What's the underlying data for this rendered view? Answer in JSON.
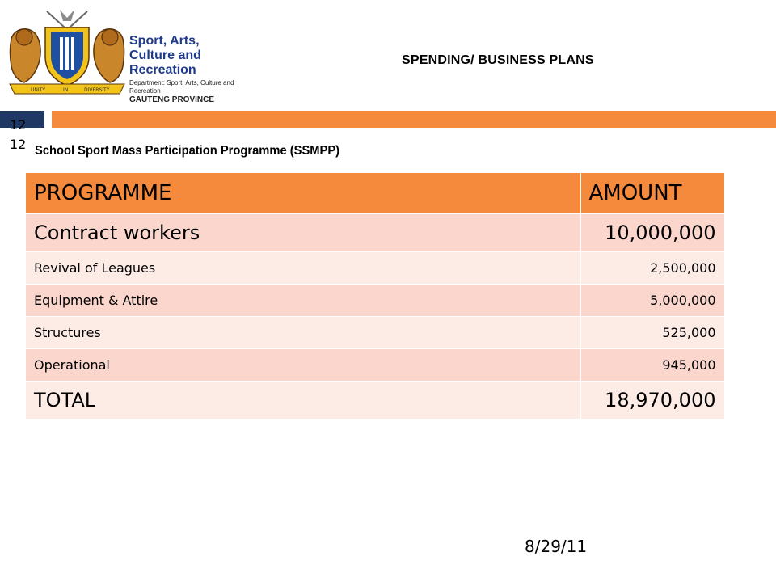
{
  "logo": {
    "line1": "Sport, Arts,",
    "line2": "Culture and Recreation",
    "line3": "Department: Sport, Arts, Culture and Recreation",
    "line4": "GAUTENG PROVINCE",
    "ribbon": [
      "UNITY",
      "IN",
      "DIVERSITY"
    ]
  },
  "header": {
    "title": "SPENDING/ BUSINESS PLANS"
  },
  "slide_number": [
    "12",
    "12"
  ],
  "subtitle": "School Sport Mass Participation Programme (SSMPP)",
  "table": {
    "headers": [
      "PROGRAMME",
      "AMOUNT"
    ],
    "rows": [
      {
        "programme": "Contract workers",
        "amount": "10,000,000"
      },
      {
        "programme": "Revival of Leagues",
        "amount": "2,500,000"
      },
      {
        "programme": "Equipment & Attire",
        "amount": "5,000,000"
      },
      {
        "programme": "Structures",
        "amount": "525,000"
      },
      {
        "programme": "Operational",
        "amount": "945,000"
      },
      {
        "programme": "TOTAL",
        "amount": "18,970,000"
      }
    ]
  },
  "footer": {
    "date": "8/29/11"
  },
  "colors": {
    "accent_orange": "#f58a3c",
    "accent_blue": "#1f3864",
    "row_dark": "#fad6cc",
    "row_light": "#fdebe6"
  }
}
